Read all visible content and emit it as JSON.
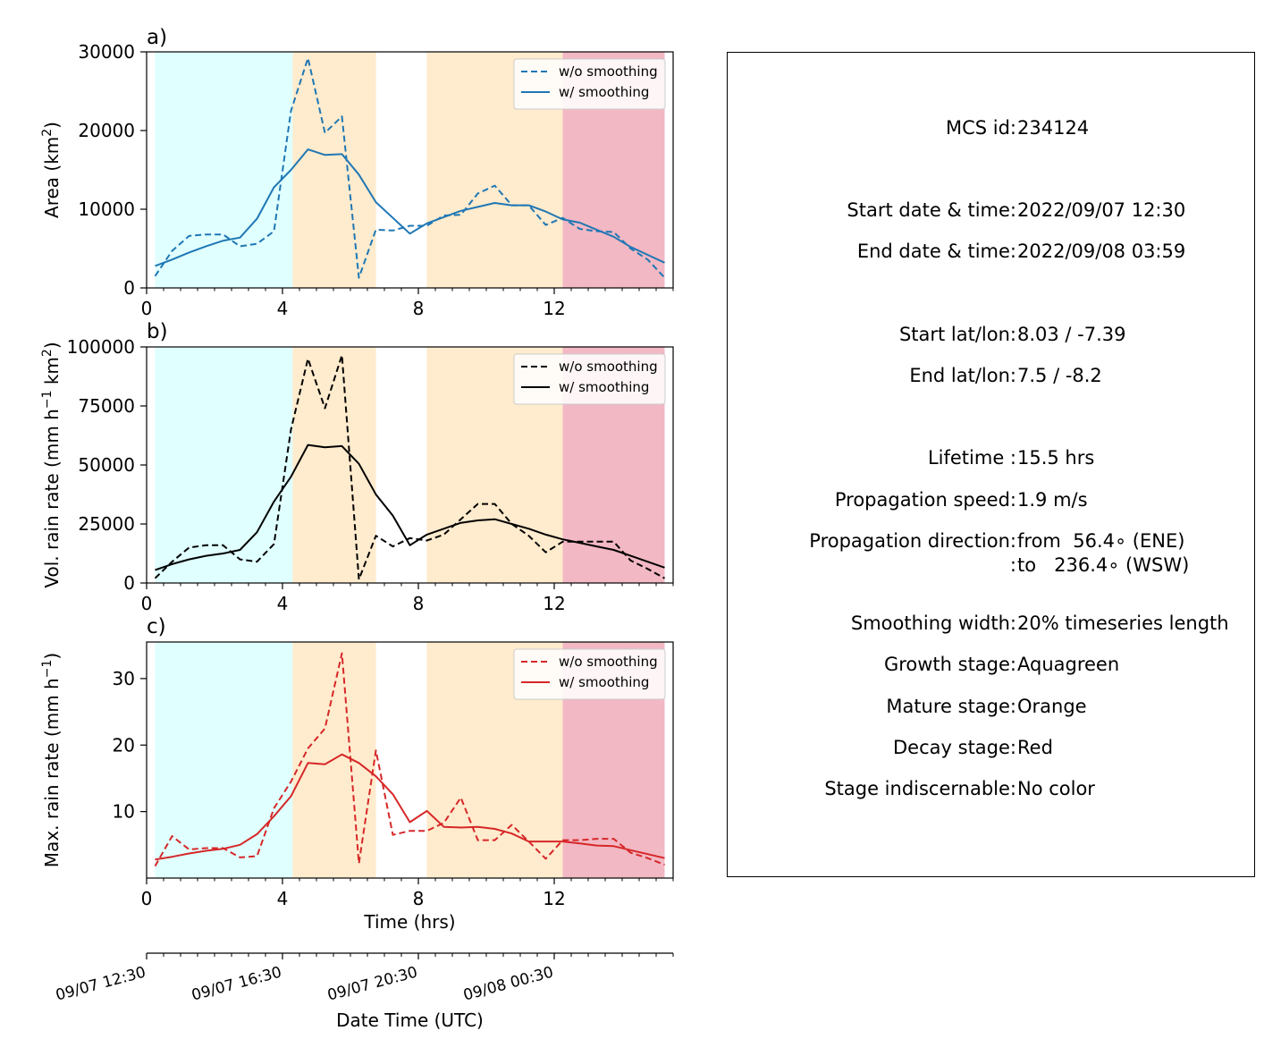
{
  "chart_data": [
    {
      "type": "line",
      "panel_label": "a)",
      "ylabel_parts": {
        "pre": "Area  (km",
        "sup": "2",
        "post": ")"
      },
      "xlim": [
        0,
        15.5
      ],
      "ylim": [
        0,
        30000
      ],
      "xticks": [
        0,
        4,
        8,
        12
      ],
      "yticks": [
        0,
        10000,
        20000,
        30000
      ],
      "legend": {
        "placement": "top-right",
        "entries": [
          "w/o smoothing",
          "w/ smoothing"
        ]
      },
      "color": "#1f77b4",
      "x": [
        0.25,
        0.75,
        1.25,
        1.75,
        2.25,
        2.75,
        3.25,
        3.75,
        4.25,
        4.75,
        5.25,
        5.75,
        6.25,
        6.75,
        7.25,
        7.75,
        8.25,
        8.75,
        9.25,
        9.75,
        10.25,
        10.75,
        11.25,
        11.75,
        12.25,
        12.75,
        13.25,
        13.75,
        14.25,
        14.75,
        15.25
      ],
      "series": [
        {
          "name": "w/o smoothing",
          "style": "dashed",
          "values": [
            1500,
            4700,
            6600,
            6800,
            6800,
            5300,
            5600,
            7200,
            22500,
            29200,
            19700,
            21800,
            1300,
            7400,
            7300,
            7900,
            7900,
            9200,
            9300,
            12000,
            13000,
            10500,
            10500,
            8000,
            8900,
            7500,
            7200,
            7100,
            5000,
            3600,
            1300
          ]
        },
        {
          "name": "w/ smoothing",
          "style": "solid",
          "values": [
            2800,
            3600,
            4500,
            5300,
            6000,
            6400,
            8800,
            12800,
            15000,
            17600,
            16900,
            17000,
            14400,
            10900,
            8900,
            6900,
            8200,
            9000,
            9800,
            10300,
            10800,
            10500,
            10500,
            9700,
            8700,
            8300,
            7400,
            6500,
            5200,
            4200,
            3200
          ]
        }
      ]
    },
    {
      "type": "line",
      "panel_label": "b)",
      "ylabel_parts": {
        "pre": "Vol. rain rate (mm h",
        "sup": "−1",
        "mid": " km",
        "sup2": "2",
        "post": ")"
      },
      "xlim": [
        0,
        15.5
      ],
      "ylim": [
        0,
        100000
      ],
      "xticks": [
        0,
        4,
        8,
        12
      ],
      "yticks": [
        0,
        25000,
        50000,
        75000,
        100000
      ],
      "legend": {
        "placement": "top-right",
        "entries": [
          "w/o smoothing",
          "w/ smoothing"
        ]
      },
      "color": "#000000",
      "x": [
        0.25,
        0.75,
        1.25,
        1.75,
        2.25,
        2.75,
        3.25,
        3.75,
        4.25,
        4.75,
        5.25,
        5.75,
        6.25,
        6.75,
        7.25,
        7.75,
        8.25,
        8.75,
        9.25,
        9.75,
        10.25,
        10.75,
        11.25,
        11.75,
        12.25,
        12.75,
        13.25,
        13.75,
        14.25,
        14.75,
        15.25
      ],
      "series": [
        {
          "name": "w/o smoothing",
          "style": "dashed",
          "values": [
            2000,
            9000,
            15000,
            16000,
            16000,
            10000,
            9000,
            16500,
            65000,
            95000,
            74000,
            96500,
            1500,
            20000,
            15500,
            19000,
            18000,
            20500,
            27000,
            33500,
            33500,
            25000,
            20000,
            13000,
            17500,
            17500,
            17500,
            17500,
            9500,
            6000,
            2000
          ]
        },
        {
          "name": "w/ smoothing",
          "style": "solid",
          "values": [
            5500,
            8000,
            10000,
            11500,
            12500,
            14000,
            21500,
            34500,
            45000,
            58500,
            57500,
            58000,
            50500,
            37500,
            28500,
            16000,
            20500,
            23000,
            25500,
            26500,
            27000,
            25000,
            23000,
            20500,
            18500,
            17000,
            15500,
            14000,
            11500,
            9000,
            6500
          ]
        }
      ]
    },
    {
      "type": "line",
      "panel_label": "c)",
      "ylabel_parts": {
        "pre": "Max. rain rate  (mm h",
        "sup": "−1",
        "post": ")"
      },
      "xlim": [
        0,
        15.5
      ],
      "ylim": [
        0,
        35.5
      ],
      "xticks": [
        0,
        4,
        8,
        12
      ],
      "yticks": [
        10,
        20,
        30
      ],
      "xlabel": "Time (hrs)",
      "legend": {
        "placement": "top-right",
        "entries": [
          "w/o smoothing",
          "w/ smoothing"
        ]
      },
      "color": "#d62728",
      "x": [
        0.25,
        0.75,
        1.25,
        1.75,
        2.25,
        2.75,
        3.25,
        3.75,
        4.25,
        4.75,
        5.25,
        5.75,
        6.25,
        6.75,
        7.25,
        7.75,
        8.25,
        8.75,
        9.25,
        9.75,
        10.25,
        10.75,
        11.25,
        11.75,
        12.25,
        12.75,
        13.25,
        13.75,
        14.25,
        14.75,
        15.25
      ],
      "series": [
        {
          "name": "w/o smoothing",
          "style": "dashed",
          "values": [
            1.8,
            6.3,
            4.3,
            4.5,
            4.5,
            3.1,
            3.3,
            10.5,
            14.5,
            19.5,
            22.5,
            33.8,
            2.2,
            19.2,
            6.5,
            7.1,
            7.1,
            8.3,
            12.1,
            5.7,
            5.7,
            8.0,
            5.5,
            2.9,
            5.7,
            5.7,
            5.9,
            5.9,
            3.8,
            3.0,
            2.0
          ]
        },
        {
          "name": "w/ smoothing",
          "style": "solid",
          "values": [
            2.8,
            3.2,
            3.7,
            4.1,
            4.4,
            5.0,
            6.6,
            9.3,
            12.3,
            17.3,
            17.1,
            18.6,
            17.3,
            15.3,
            12.6,
            8.4,
            10.1,
            7.7,
            7.6,
            7.7,
            7.4,
            6.7,
            5.5,
            5.5,
            5.5,
            5.2,
            4.9,
            4.8,
            4.2,
            3.6,
            3.0
          ]
        }
      ]
    }
  ],
  "stage_bands": [
    {
      "stage": "growth",
      "from": 0.25,
      "to": 4.3,
      "color": "#e0ffff"
    },
    {
      "stage": "mature",
      "from": 4.3,
      "to": 6.75,
      "color": "#ffebcd"
    },
    {
      "stage": "mature",
      "from": 8.25,
      "to": 12.25,
      "color": "#ffebcd"
    },
    {
      "stage": "decay",
      "from": 12.25,
      "to": 15.25,
      "color": "#f2b8c4"
    }
  ],
  "date_axis": {
    "label": "Date Time (UTC)",
    "ticks": [
      {
        "hrs": 0,
        "label": "09/07 12:30"
      },
      {
        "hrs": 4,
        "label": "09/07 16:30"
      },
      {
        "hrs": 8,
        "label": "09/07 20:30"
      },
      {
        "hrs": 12,
        "label": "09/08 00:30"
      }
    ]
  },
  "info": {
    "mcs_id": {
      "key": "MCS id:",
      "value": "234124"
    },
    "start_time": {
      "key": "Start date & time:",
      "value": "2022/09/07 12:30"
    },
    "end_time": {
      "key": "End date & time:",
      "value": "2022/09/08 03:59"
    },
    "start_latlon": {
      "key": "Start lat/lon:",
      "value": "8.03 / -7.39"
    },
    "end_latlon": {
      "key": "End lat/lon:",
      "value": "7.5 / -8.2"
    },
    "lifetime": {
      "key": "Lifetime :",
      "value": "15.5 hrs"
    },
    "prop_speed": {
      "key": "Propagation speed:",
      "value": "1.9 m/s"
    },
    "prop_dir": {
      "key": "Propagation direction:",
      "value": "from  56.4∘ (ENE)"
    },
    "prop_dir2": {
      "key": ":",
      "value": "to   236.4∘ (WSW)"
    },
    "smoothing": {
      "key": "Smoothing width:",
      "value": "20% timeseries length"
    },
    "growth": {
      "key": "Growth stage:",
      "value": "Aquagreen"
    },
    "mature": {
      "key": "Mature stage:",
      "value": "Orange"
    },
    "decay": {
      "key": "Decay stage:",
      "value": "Red"
    },
    "indiscernable": {
      "key": "Stage indiscernable:",
      "value": "No color"
    }
  }
}
